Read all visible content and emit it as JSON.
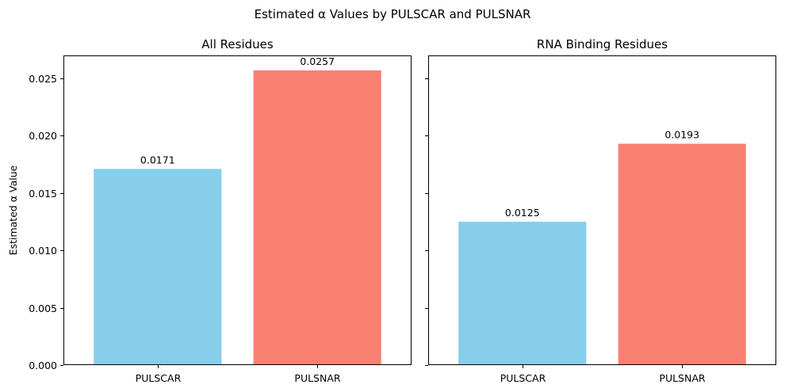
{
  "figure": {
    "title": "Estimated α Values by PULSCAR and PULSNAR"
  },
  "chart_data": [
    {
      "type": "bar",
      "title": "All Residues",
      "xlabel": "",
      "ylabel": "Estimated α Value",
      "categories": [
        "PULSCAR",
        "PULSNAR"
      ],
      "values": [
        0.0171,
        0.0257
      ],
      "bar_labels": [
        "0.0171",
        "0.0257"
      ],
      "colors": [
        "#87CEEB",
        "#FA8072"
      ],
      "ylim": [
        0,
        0.027
      ],
      "yticks": [
        0.0,
        0.005,
        0.01,
        0.015,
        0.02,
        0.025
      ],
      "ytick_labels": [
        "0.000",
        "0.005",
        "0.010",
        "0.015",
        "0.020",
        "0.025"
      ],
      "show_ytick_labels": true,
      "grid": false
    },
    {
      "type": "bar",
      "title": "RNA Binding Residues",
      "xlabel": "",
      "ylabel": "",
      "categories": [
        "PULSCAR",
        "PULSNAR"
      ],
      "values": [
        0.0125,
        0.0193
      ],
      "bar_labels": [
        "0.0125",
        "0.0193"
      ],
      "colors": [
        "#87CEEB",
        "#FA8072"
      ],
      "ylim": [
        0,
        0.027
      ],
      "yticks": [
        0.0,
        0.005,
        0.01,
        0.015,
        0.02,
        0.025
      ],
      "ytick_labels": [
        "0.000",
        "0.005",
        "0.010",
        "0.015",
        "0.020",
        "0.025"
      ],
      "show_ytick_labels": false,
      "grid": false
    }
  ]
}
